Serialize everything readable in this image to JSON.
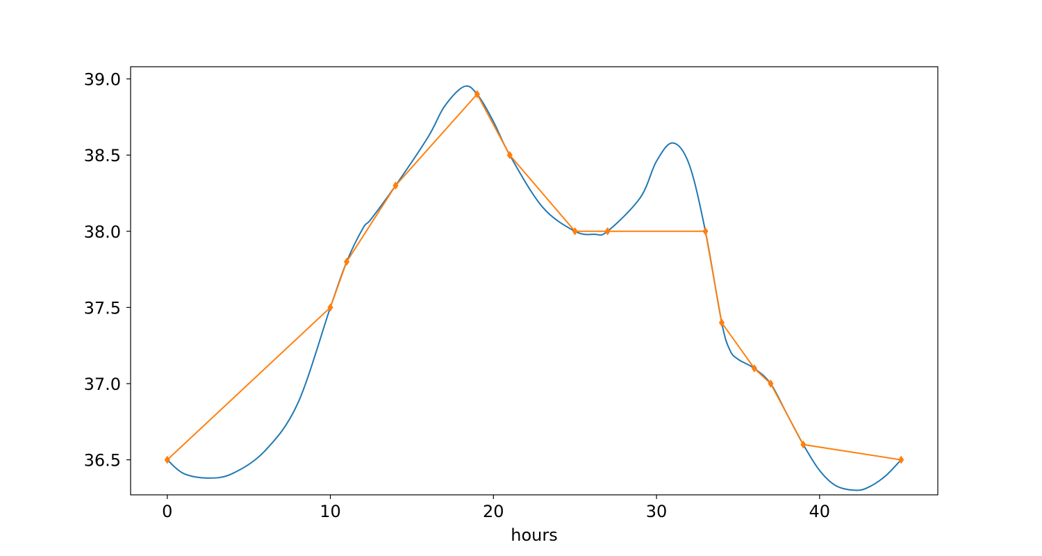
{
  "chart_data": {
    "type": "line",
    "title": "",
    "xlabel": "hours",
    "ylabel": "",
    "xlim": [
      -2.25,
      47.25
    ],
    "ylim": [
      36.27,
      39.08
    ],
    "xticks": [
      0,
      10,
      20,
      30,
      40
    ],
    "xtick_labels": [
      "0",
      "10",
      "20",
      "30",
      "40"
    ],
    "yticks": [
      36.5,
      37.0,
      37.5,
      38.0,
      38.5,
      39.0
    ],
    "ytick_labels": [
      "36.5",
      "37.0",
      "37.5",
      "38.0",
      "38.5",
      "39.0"
    ],
    "grid": false,
    "legend": "none",
    "series": [
      {
        "style": "smooth-line",
        "color": "#1f77b4",
        "x": [
          0,
          1,
          2.5,
          4,
          6,
          8,
          10,
          11,
          12,
          12.5,
          14,
          16,
          17,
          18.2,
          19,
          20,
          21,
          23,
          25,
          26.2,
          27,
          29,
          30,
          31,
          32,
          33,
          34,
          34.5,
          35,
          36,
          37,
          38,
          39,
          40,
          41,
          42.2,
          43,
          44,
          45
        ],
        "y": [
          36.5,
          36.41,
          36.38,
          36.41,
          36.56,
          36.87,
          37.5,
          37.8,
          38.02,
          38.08,
          38.3,
          38.62,
          38.82,
          38.95,
          38.9,
          38.72,
          38.5,
          38.16,
          38.0,
          37.98,
          38.0,
          38.22,
          38.46,
          38.58,
          38.44,
          38.0,
          37.4,
          37.22,
          37.16,
          37.1,
          37.0,
          36.8,
          36.6,
          36.43,
          36.33,
          36.3,
          36.32,
          36.39,
          36.5
        ]
      },
      {
        "style": "line-markers",
        "color": "#ff7f0e",
        "marker": "diamond",
        "x": [
          0,
          10,
          11,
          14,
          19,
          21,
          25,
          27,
          33,
          34,
          36,
          37,
          39,
          45
        ],
        "y": [
          36.5,
          37.5,
          37.8,
          38.3,
          38.9,
          38.5,
          38.0,
          38.0,
          38.0,
          37.4,
          37.1,
          37.0,
          36.6,
          36.5
        ]
      }
    ]
  }
}
